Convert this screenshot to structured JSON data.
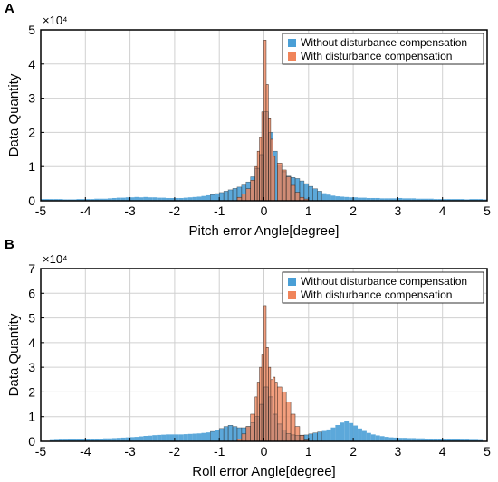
{
  "colors": {
    "without": "#4a9fd6",
    "with": "#f0845a",
    "overlap": "#9b7b6e",
    "grid": "#d0d0d0",
    "axis": "#000000"
  },
  "chart_data": [
    {
      "type": "bar",
      "panel": "A",
      "xlabel": "Pitch error Angle[degree]",
      "ylabel": "Data Quantity",
      "ymultiplier": "×10⁴",
      "xlim": [
        -5,
        5
      ],
      "ylim": [
        0,
        5
      ],
      "xticks": [
        -5,
        -4,
        -3,
        -2,
        -1,
        0,
        1,
        2,
        3,
        4,
        5
      ],
      "yticks": [
        0,
        1,
        2,
        3,
        4,
        5
      ],
      "grid": true,
      "legend_position": "top-right",
      "bin_width": 0.1,
      "series": [
        {
          "name": "Without disturbance compensation",
          "bins": [
            [
              -5.0,
              0.05
            ],
            [
              -4.9,
              0.05
            ],
            [
              -4.8,
              0.05
            ],
            [
              -4.7,
              0.05
            ],
            [
              -4.6,
              0.05
            ],
            [
              -4.5,
              0.04
            ],
            [
              -4.4,
              0.04
            ],
            [
              -4.3,
              0.04
            ],
            [
              -4.2,
              0.05
            ],
            [
              -4.1,
              0.05
            ],
            [
              -4.0,
              0.05
            ],
            [
              -3.9,
              0.05
            ],
            [
              -3.8,
              0.06
            ],
            [
              -3.7,
              0.06
            ],
            [
              -3.6,
              0.06
            ],
            [
              -3.5,
              0.07
            ],
            [
              -3.4,
              0.08
            ],
            [
              -3.3,
              0.09
            ],
            [
              -3.2,
              0.09
            ],
            [
              -3.1,
              0.1
            ],
            [
              -3.0,
              0.1
            ],
            [
              -2.9,
              0.11
            ],
            [
              -2.8,
              0.1
            ],
            [
              -2.7,
              0.11
            ],
            [
              -2.6,
              0.1
            ],
            [
              -2.5,
              0.1
            ],
            [
              -2.4,
              0.09
            ],
            [
              -2.3,
              0.09
            ],
            [
              -2.2,
              0.08
            ],
            [
              -2.1,
              0.08
            ],
            [
              -2.0,
              0.08
            ],
            [
              -1.9,
              0.08
            ],
            [
              -1.8,
              0.09
            ],
            [
              -1.7,
              0.1
            ],
            [
              -1.6,
              0.11
            ],
            [
              -1.5,
              0.12
            ],
            [
              -1.4,
              0.14
            ],
            [
              -1.3,
              0.16
            ],
            [
              -1.2,
              0.18
            ],
            [
              -1.1,
              0.21
            ],
            [
              -1.0,
              0.24
            ],
            [
              -0.9,
              0.28
            ],
            [
              -0.8,
              0.32
            ],
            [
              -0.7,
              0.36
            ],
            [
              -0.6,
              0.4
            ],
            [
              -0.5,
              0.46
            ],
            [
              -0.4,
              0.55
            ],
            [
              -0.3,
              0.7
            ],
            [
              -0.2,
              0.95
            ],
            [
              -0.1,
              1.35
            ],
            [
              0.0,
              2.6
            ],
            [
              0.1,
              2.0
            ],
            [
              0.2,
              1.45
            ],
            [
              0.3,
              1.05
            ],
            [
              0.4,
              0.85
            ],
            [
              0.5,
              0.72
            ],
            [
              0.6,
              0.68
            ],
            [
              0.7,
              0.65
            ],
            [
              0.8,
              0.58
            ],
            [
              0.9,
              0.5
            ],
            [
              1.0,
              0.42
            ],
            [
              1.1,
              0.35
            ],
            [
              1.2,
              0.28
            ],
            [
              1.3,
              0.22
            ],
            [
              1.4,
              0.18
            ],
            [
              1.5,
              0.15
            ],
            [
              1.6,
              0.13
            ],
            [
              1.7,
              0.12
            ],
            [
              1.8,
              0.11
            ],
            [
              1.9,
              0.1
            ],
            [
              2.0,
              0.1
            ],
            [
              2.1,
              0.09
            ],
            [
              2.2,
              0.09
            ],
            [
              2.3,
              0.08
            ],
            [
              2.4,
              0.08
            ],
            [
              2.5,
              0.08
            ],
            [
              2.6,
              0.07
            ],
            [
              2.7,
              0.07
            ],
            [
              2.8,
              0.07
            ],
            [
              2.9,
              0.07
            ],
            [
              3.0,
              0.08
            ],
            [
              3.1,
              0.07
            ],
            [
              3.2,
              0.07
            ],
            [
              3.3,
              0.07
            ],
            [
              3.4,
              0.06
            ],
            [
              3.5,
              0.06
            ],
            [
              3.6,
              0.06
            ],
            [
              3.7,
              0.06
            ],
            [
              3.8,
              0.05
            ],
            [
              3.9,
              0.05
            ],
            [
              4.0,
              0.05
            ],
            [
              4.1,
              0.05
            ],
            [
              4.2,
              0.05
            ],
            [
              4.3,
              0.05
            ],
            [
              4.4,
              0.05
            ],
            [
              4.5,
              0.04
            ],
            [
              4.6,
              0.05
            ],
            [
              4.7,
              0.05
            ],
            [
              4.8,
              0.05
            ],
            [
              4.9,
              0.04
            ]
          ]
        },
        {
          "name": "With disturbance compensation",
          "bins": [
            [
              -0.6,
              0.1
            ],
            [
              -0.5,
              0.2
            ],
            [
              -0.4,
              0.35
            ],
            [
              -0.3,
              0.6
            ],
            [
              -0.2,
              1.0
            ],
            [
              -0.15,
              1.45
            ],
            [
              -0.1,
              1.85
            ],
            [
              -0.05,
              2.6
            ],
            [
              0.0,
              4.7
            ],
            [
              0.05,
              3.4
            ],
            [
              0.1,
              2.4
            ],
            [
              0.15,
              1.8
            ],
            [
              0.2,
              1.3
            ],
            [
              0.3,
              1.1
            ],
            [
              0.4,
              0.9
            ],
            [
              0.5,
              0.7
            ],
            [
              0.6,
              0.45
            ],
            [
              0.7,
              0.25
            ],
            [
              0.8,
              0.1
            ],
            [
              0.9,
              0.05
            ]
          ]
        }
      ]
    },
    {
      "type": "bar",
      "panel": "B",
      "xlabel": "Roll error Angle[degree]",
      "ylabel": "Data Quantity",
      "ymultiplier": "×10⁴",
      "xlim": [
        -5,
        5
      ],
      "ylim": [
        0,
        7
      ],
      "xticks": [
        -5,
        -4,
        -3,
        -2,
        -1,
        0,
        1,
        2,
        3,
        4,
        5
      ],
      "yticks": [
        0,
        1,
        2,
        3,
        4,
        5,
        6,
        7
      ],
      "grid": true,
      "legend_position": "top-right",
      "bin_width": 0.1,
      "series": [
        {
          "name": "Without disturbance compensation",
          "bins": [
            [
              -4.8,
              0.05
            ],
            [
              -4.7,
              0.06
            ],
            [
              -4.6,
              0.07
            ],
            [
              -4.5,
              0.07
            ],
            [
              -4.4,
              0.08
            ],
            [
              -4.3,
              0.08
            ],
            [
              -4.2,
              0.09
            ],
            [
              -4.1,
              0.09
            ],
            [
              -4.0,
              0.1
            ],
            [
              -3.9,
              0.1
            ],
            [
              -3.8,
              0.11
            ],
            [
              -3.7,
              0.11
            ],
            [
              -3.6,
              0.12
            ],
            [
              -3.5,
              0.12
            ],
            [
              -3.4,
              0.13
            ],
            [
              -3.3,
              0.14
            ],
            [
              -3.2,
              0.15
            ],
            [
              -3.1,
              0.16
            ],
            [
              -3.0,
              0.17
            ],
            [
              -2.9,
              0.18
            ],
            [
              -2.8,
              0.2
            ],
            [
              -2.7,
              0.22
            ],
            [
              -2.6,
              0.23
            ],
            [
              -2.5,
              0.25
            ],
            [
              -2.4,
              0.26
            ],
            [
              -2.3,
              0.27
            ],
            [
              -2.2,
              0.28
            ],
            [
              -2.1,
              0.28
            ],
            [
              -2.0,
              0.28
            ],
            [
              -1.9,
              0.28
            ],
            [
              -1.8,
              0.29
            ],
            [
              -1.7,
              0.3
            ],
            [
              -1.6,
              0.31
            ],
            [
              -1.5,
              0.32
            ],
            [
              -1.4,
              0.34
            ],
            [
              -1.3,
              0.36
            ],
            [
              -1.2,
              0.4
            ],
            [
              -1.1,
              0.45
            ],
            [
              -1.0,
              0.52
            ],
            [
              -0.9,
              0.6
            ],
            [
              -0.8,
              0.65
            ],
            [
              -0.7,
              0.6
            ],
            [
              -0.6,
              0.55
            ],
            [
              -0.5,
              0.55
            ],
            [
              -0.4,
              0.6
            ],
            [
              -0.3,
              0.75
            ],
            [
              -0.2,
              1.0
            ],
            [
              -0.1,
              1.5
            ],
            [
              0.0,
              2.2
            ],
            [
              0.1,
              1.8
            ],
            [
              0.2,
              1.1
            ],
            [
              0.3,
              0.7
            ],
            [
              0.4,
              0.45
            ],
            [
              0.5,
              0.32
            ],
            [
              0.6,
              0.26
            ],
            [
              0.7,
              0.24
            ],
            [
              0.8,
              0.24
            ],
            [
              0.9,
              0.26
            ],
            [
              1.0,
              0.3
            ],
            [
              1.1,
              0.34
            ],
            [
              1.2,
              0.38
            ],
            [
              1.3,
              0.42
            ],
            [
              1.4,
              0.48
            ],
            [
              1.5,
              0.56
            ],
            [
              1.6,
              0.66
            ],
            [
              1.7,
              0.76
            ],
            [
              1.8,
              0.82
            ],
            [
              1.9,
              0.74
            ],
            [
              2.0,
              0.64
            ],
            [
              2.1,
              0.52
            ],
            [
              2.2,
              0.42
            ],
            [
              2.3,
              0.34
            ],
            [
              2.4,
              0.28
            ],
            [
              2.5,
              0.24
            ],
            [
              2.6,
              0.21
            ],
            [
              2.7,
              0.18
            ],
            [
              2.8,
              0.16
            ],
            [
              2.9,
              0.15
            ],
            [
              3.0,
              0.14
            ],
            [
              3.1,
              0.14
            ],
            [
              3.2,
              0.13
            ],
            [
              3.3,
              0.13
            ],
            [
              3.4,
              0.12
            ],
            [
              3.5,
              0.12
            ],
            [
              3.6,
              0.11
            ],
            [
              3.7,
              0.11
            ],
            [
              3.8,
              0.1
            ],
            [
              3.9,
              0.1
            ],
            [
              4.0,
              0.09
            ],
            [
              4.1,
              0.09
            ],
            [
              4.2,
              0.08
            ],
            [
              4.3,
              0.08
            ],
            [
              4.4,
              0.07
            ],
            [
              4.5,
              0.07
            ],
            [
              4.6,
              0.06
            ],
            [
              4.7,
              0.06
            ],
            [
              4.8,
              0.05
            ]
          ]
        },
        {
          "name": "With disturbance compensation",
          "bins": [
            [
              -0.6,
              0.1
            ],
            [
              -0.5,
              0.3
            ],
            [
              -0.4,
              0.6
            ],
            [
              -0.3,
              1.1
            ],
            [
              -0.2,
              1.8
            ],
            [
              -0.15,
              2.4
            ],
            [
              -0.1,
              3.0
            ],
            [
              -0.05,
              3.5
            ],
            [
              0.0,
              5.5
            ],
            [
              0.05,
              3.8
            ],
            [
              0.1,
              3.0
            ],
            [
              0.15,
              2.5
            ],
            [
              0.2,
              2.6
            ],
            [
              0.25,
              2.4
            ],
            [
              0.3,
              2.2
            ],
            [
              0.4,
              2.0
            ],
            [
              0.5,
              1.6
            ],
            [
              0.6,
              1.1
            ],
            [
              0.7,
              0.6
            ],
            [
              0.8,
              0.25
            ],
            [
              0.9,
              0.05
            ]
          ]
        }
      ]
    }
  ]
}
